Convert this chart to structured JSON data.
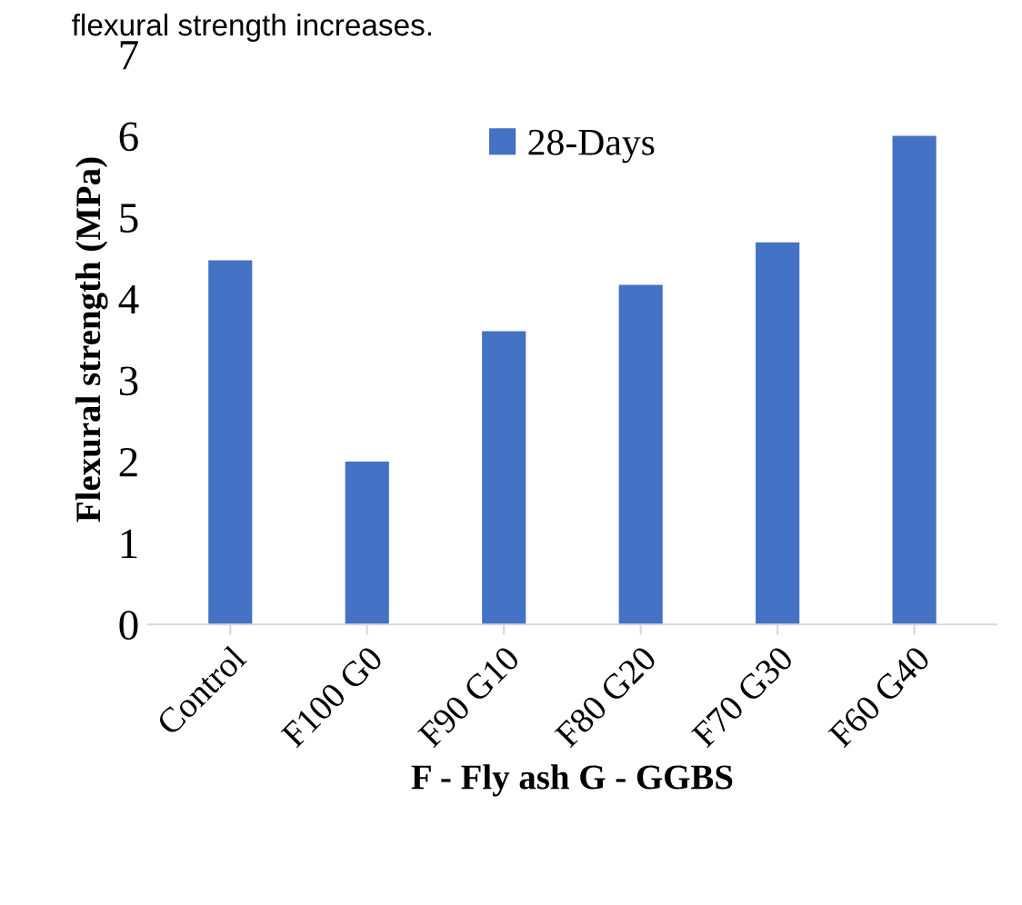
{
  "chart_data": {
    "type": "bar",
    "xlabel": "F - Fly ash G - GGBS",
    "ylabel": "Flexural strength (MPa)",
    "annotations": [
      "flexural strength increases."
    ],
    "categories": [
      "Control",
      "F100 G0",
      "F90 G10",
      "F80 G20",
      "F70 G30",
      "F60 G40"
    ],
    "series": [
      {
        "name": "28-Days",
        "color": "#4472c4",
        "values": [
          4.47,
          2.0,
          3.6,
          4.17,
          4.69,
          6.0
        ]
      }
    ],
    "ylim": [
      0,
      7
    ],
    "yticks": [
      0,
      1,
      2,
      3,
      4,
      5,
      6,
      7
    ],
    "grid": false,
    "legend": "top"
  }
}
